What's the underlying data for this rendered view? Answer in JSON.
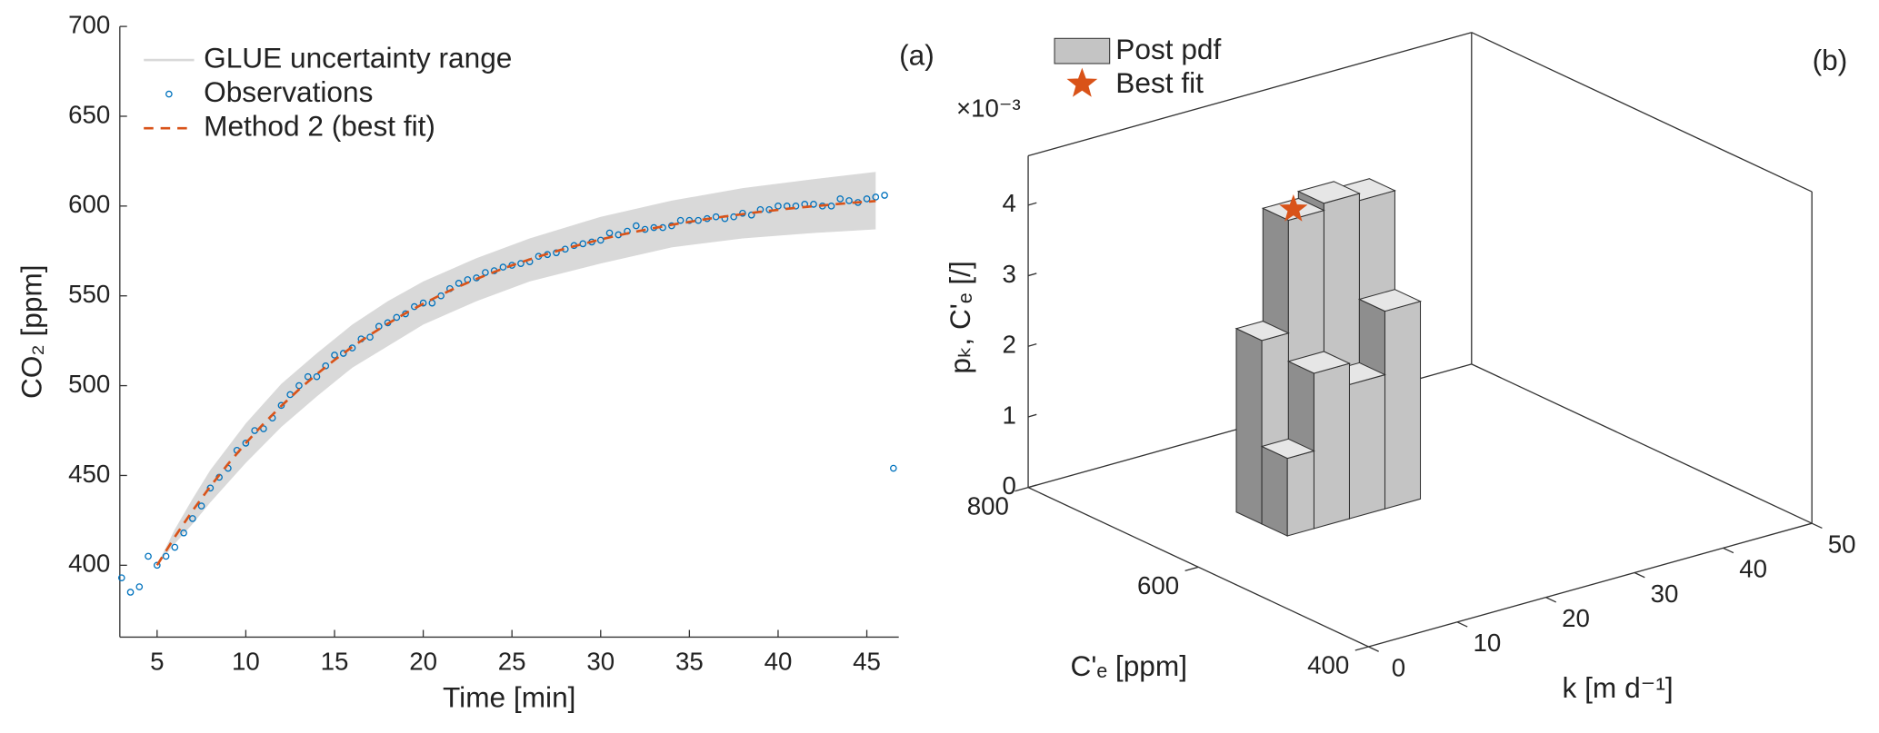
{
  "chart_data": [
    {
      "type": "line",
      "panel_label": "(a)",
      "x_label": "Time [min]",
      "y_label": "CO₂ [ppm]",
      "xlim": [
        2.9,
        46.8
      ],
      "ylim": [
        360,
        700
      ],
      "xticks": [
        5,
        10,
        15,
        20,
        25,
        30,
        35,
        40,
        45
      ],
      "yticks": [
        400,
        450,
        500,
        550,
        600,
        650,
        700
      ],
      "legend": "upper left",
      "band": {
        "name": "GLUE uncertainty range",
        "color": "#d9d9d9",
        "x": [
          5,
          6,
          7,
          8,
          9,
          10,
          12,
          14,
          16,
          18,
          20,
          23,
          26,
          30,
          34,
          38,
          42,
          45.5
        ],
        "upper": [
          400,
          420,
          437,
          453,
          466,
          479,
          501,
          518,
          534,
          547,
          558,
          571,
          582,
          594,
          603,
          610,
          615,
          619
        ],
        "lower": [
          400,
          412,
          423,
          435,
          446,
          457,
          477,
          494,
          510,
          522,
          534,
          547,
          558,
          568,
          577,
          582,
          585,
          587
        ]
      },
      "series": [
        {
          "name": "Observations",
          "color": "#0072bd",
          "marker": "circle",
          "x": [
            3,
            3.5,
            4,
            4.5,
            5,
            5.5,
            6,
            6.5,
            7,
            7.5,
            8,
            8.5,
            9,
            9.5,
            10,
            10.5,
            11,
            11.5,
            12,
            12.5,
            13,
            13.5,
            14,
            14.5,
            15,
            15.5,
            16,
            16.5,
            17,
            17.5,
            18,
            18.5,
            19,
            19.5,
            20,
            20.5,
            21,
            21.5,
            22,
            22.5,
            23,
            23.5,
            24,
            24.5,
            25,
            25.5,
            26,
            26.5,
            27,
            27.5,
            28,
            28.5,
            29,
            29.5,
            30,
            30.5,
            31,
            31.5,
            32,
            32.5,
            33,
            33.5,
            34,
            34.5,
            35,
            35.5,
            36,
            36.5,
            37,
            37.5,
            38,
            38.5,
            39,
            39.5,
            40,
            40.5,
            41,
            41.5,
            42,
            42.5,
            43,
            43.5,
            44,
            44.5,
            45,
            45.5,
            46,
            46.5
          ],
          "values": [
            393,
            385,
            388,
            405,
            400,
            405,
            410,
            418,
            426,
            433,
            443,
            449,
            454,
            464,
            468,
            475,
            476,
            482,
            489,
            495,
            500,
            505,
            505,
            511,
            517,
            518,
            521,
            526,
            527,
            533,
            535,
            538,
            540,
            544,
            546,
            546,
            550,
            554,
            557,
            559,
            560,
            563,
            564,
            566,
            567,
            568,
            569,
            572,
            573,
            574,
            576,
            578,
            579,
            580,
            581,
            585,
            584,
            586,
            589,
            587,
            588,
            588,
            589,
            592,
            592,
            592,
            593,
            594,
            593,
            594,
            596,
            595,
            598,
            598,
            600,
            600,
            600,
            601,
            601,
            600,
            600,
            604,
            603,
            602,
            604,
            605,
            606,
            454
          ]
        },
        {
          "name": "Method 2 (best fit)",
          "color": "#d95319",
          "dash": true,
          "x": [
            5,
            6,
            7,
            8,
            9,
            10,
            11,
            12,
            13,
            14,
            15,
            16,
            17,
            18,
            19,
            20,
            21,
            22,
            23,
            24,
            25,
            26,
            27,
            28,
            29,
            30,
            31,
            32,
            33,
            34,
            35,
            36,
            37,
            38,
            39,
            40,
            41,
            42,
            43,
            44,
            45,
            45.5
          ],
          "values": [
            400,
            415.8,
            430.4,
            443.9,
            456.4,
            468,
            478.8,
            488.7,
            497.9,
            506.4,
            514.3,
            521.6,
            528.3,
            534.5,
            540.3,
            545.6,
            550.6,
            555.2,
            559.4,
            563.3,
            567,
            570.3,
            573.4,
            576.3,
            578.9,
            581.4,
            583.7,
            585.8,
            587.7,
            589.6,
            591.2,
            592.8,
            594.2,
            595.5,
            596.8,
            597.9,
            599,
            599.9,
            600.8,
            601.7,
            602.4,
            602.8
          ]
        }
      ]
    },
    {
      "type": "bar3d",
      "panel_label": "(b)",
      "x_label": "k [m d⁻¹]",
      "y_label": "C'ₑ [ppm]",
      "z_label": "pₖ, C'ₑ [/]",
      "z_multiplier": "×10⁻³",
      "xlim": [
        0,
        50
      ],
      "xticks": [
        0,
        10,
        20,
        30,
        40,
        50
      ],
      "ylim": [
        400,
        800
      ],
      "yticks": [
        400,
        600,
        800
      ],
      "zlim": [
        0,
        4.7
      ],
      "zticks": [
        0,
        1,
        2,
        3,
        4
      ],
      "bar_name": "Post pdf",
      "bar_color": "#c4c4c4",
      "bars": [
        {
          "x": [
            11,
            14
          ],
          "y": [
            610,
            640
          ],
          "value": 1.1
        },
        {
          "x": [
            14,
            18
          ],
          "y": [
            610,
            640
          ],
          "value": 2.2
        },
        {
          "x": [
            18,
            22
          ],
          "y": [
            610,
            640
          ],
          "value": 1.9
        },
        {
          "x": [
            22,
            26
          ],
          "y": [
            610,
            640
          ],
          "value": 2.8
        },
        {
          "x": [
            11,
            14
          ],
          "y": [
            640,
            670
          ],
          "value": 2.6
        },
        {
          "x": [
            14,
            18
          ],
          "y": [
            640,
            670
          ],
          "value": 4.2
        },
        {
          "x": [
            18,
            22
          ],
          "y": [
            640,
            670
          ],
          "value": 4.3
        },
        {
          "x": [
            22,
            26
          ],
          "y": [
            640,
            670
          ],
          "value": 4.2
        }
      ],
      "best_fit": {
        "name": "Best fit",
        "color": "#d95319",
        "x": 16,
        "y": 655,
        "value": 4.2
      }
    }
  ]
}
